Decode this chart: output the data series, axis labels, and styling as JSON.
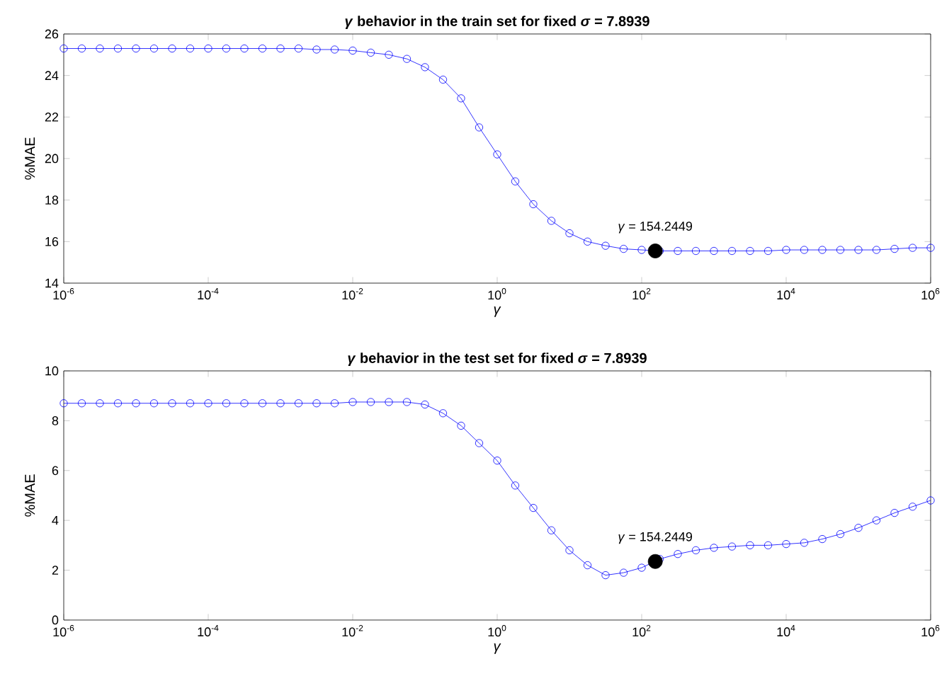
{
  "chart_data": [
    {
      "type": "line",
      "title": "*γ* behavior in the train set for fixed *σ* = 7.8939",
      "xlabel": "*γ*",
      "ylabel": "%MAE",
      "log": "x",
      "marker": "circle",
      "line_style": "solid",
      "xlim": [
        1e-06,
        1000000.0
      ],
      "ylim": [
        14,
        26
      ],
      "xticks": [
        {
          "value": 1e-06,
          "label": "10$^{-6}$"
        },
        {
          "value": 0.0001,
          "label": "10$^{-4}$"
        },
        {
          "value": 0.01,
          "label": "10$^{-2}$"
        },
        {
          "value": 1,
          "label": "10$^{0}$"
        },
        {
          "value": 100,
          "label": "10$^{2}$"
        },
        {
          "value": 10000,
          "label": "10$^{4}$"
        },
        {
          "value": 1000000,
          "label": "10$^{6}$"
        }
      ],
      "yticks": [
        14,
        16,
        18,
        20,
        22,
        24,
        26
      ],
      "annotations": [
        {
          "text": "*γ* = 154.2449",
          "x": 154.2449,
          "y": 15.55
        }
      ],
      "series": [
        {
          "color": "#0000ff",
          "x": [
            1e-06,
            1.778e-06,
            3.162e-06,
            5.623e-06,
            1e-05,
            1.778e-05,
            3.162e-05,
            5.623e-05,
            0.0001,
            0.0001778,
            0.0003162,
            0.0005623,
            0.001,
            0.001778,
            0.003162,
            0.005623,
            0.01,
            0.01778,
            0.03162,
            0.05623,
            0.1,
            0.1778,
            0.3162,
            0.5623,
            1,
            1.778,
            3.162,
            5.623,
            10,
            17.78,
            31.62,
            56.23,
            100,
            177.8,
            316.2,
            562.3,
            1000,
            1778,
            3162,
            5623,
            10000,
            17780,
            31620,
            56230,
            100000,
            177800,
            316200,
            562300,
            1000000
          ],
          "values": [
            25.3,
            25.3,
            25.3,
            25.3,
            25.3,
            25.3,
            25.3,
            25.3,
            25.3,
            25.3,
            25.3,
            25.3,
            25.3,
            25.3,
            25.25,
            25.25,
            25.2,
            25.1,
            25.0,
            24.8,
            24.4,
            23.8,
            22.9,
            21.5,
            20.2,
            18.9,
            17.8,
            17.0,
            16.4,
            16.0,
            15.8,
            15.65,
            15.6,
            15.55,
            15.55,
            15.55,
            15.55,
            15.55,
            15.55,
            15.55,
            15.6,
            15.6,
            15.6,
            15.6,
            15.6,
            15.6,
            15.65,
            15.7,
            15.7
          ]
        },
        {
          "type": "scatter",
          "color": "#000000",
          "x": [
            154.2449
          ],
          "values": [
            15.55
          ]
        }
      ]
    },
    {
      "type": "line",
      "title": "*γ* behavior in the test set for fixed *σ* = 7.8939",
      "xlabel": "*γ*",
      "ylabel": "%MAE",
      "log": "x",
      "marker": "circle",
      "line_style": "solid",
      "xlim": [
        1e-06,
        1000000.0
      ],
      "ylim": [
        0,
        10
      ],
      "xticks": [
        {
          "value": 1e-06,
          "label": "10$^{-6}$"
        },
        {
          "value": 0.0001,
          "label": "10$^{-4}$"
        },
        {
          "value": 0.01,
          "label": "10$^{-2}$"
        },
        {
          "value": 1,
          "label": "10$^{0}$"
        },
        {
          "value": 100,
          "label": "10$^{2}$"
        },
        {
          "value": 10000,
          "label": "10$^{4}$"
        },
        {
          "value": 1000000,
          "label": "10$^{6}$"
        }
      ],
      "yticks": [
        0,
        2,
        4,
        6,
        8,
        10
      ],
      "annotations": [
        {
          "text": "*γ* = 154.2449",
          "x": 154.2449,
          "y": 2.35
        }
      ],
      "series": [
        {
          "color": "#0000ff",
          "x": [
            1e-06,
            1.778e-06,
            3.162e-06,
            5.623e-06,
            1e-05,
            1.778e-05,
            3.162e-05,
            5.623e-05,
            0.0001,
            0.0001778,
            0.0003162,
            0.0005623,
            0.001,
            0.001778,
            0.003162,
            0.005623,
            0.01,
            0.01778,
            0.03162,
            0.05623,
            0.1,
            0.1778,
            0.3162,
            0.5623,
            1,
            1.778,
            3.162,
            5.623,
            10,
            17.78,
            31.62,
            56.23,
            100,
            177.8,
            316.2,
            562.3,
            1000,
            1778,
            3162,
            5623,
            10000,
            17780,
            31620,
            56230,
            100000,
            177800,
            316200,
            562300,
            1000000
          ],
          "values": [
            8.7,
            8.7,
            8.7,
            8.7,
            8.7,
            8.7,
            8.7,
            8.7,
            8.7,
            8.7,
            8.7,
            8.7,
            8.7,
            8.7,
            8.7,
            8.7,
            8.75,
            8.75,
            8.75,
            8.75,
            8.65,
            8.3,
            7.8,
            7.1,
            6.4,
            5.4,
            4.5,
            3.6,
            2.8,
            2.2,
            1.8,
            1.9,
            2.1,
            2.45,
            2.65,
            2.8,
            2.9,
            2.95,
            3.0,
            3.0,
            3.05,
            3.1,
            3.25,
            3.45,
            3.7,
            4.0,
            4.3,
            4.55,
            4.8
          ]
        },
        {
          "type": "scatter",
          "color": "#000000",
          "x": [
            154.2449
          ],
          "values": [
            2.35
          ]
        }
      ]
    }
  ]
}
